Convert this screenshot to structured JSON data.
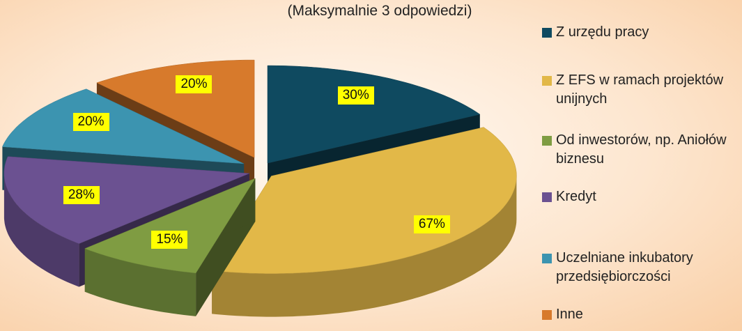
{
  "chart_data": {
    "type": "pie",
    "subtitle": "(Maksymalnie 3 odpowiedzi)",
    "categories": [
      "Z urzędu pracy",
      "Z EFS w ramach projektów unijnych",
      "Od inwestorów, np. Aniołów biznesu",
      "Kredyt",
      "Uczelniane inkubatory przedsiębiorczości",
      "Inne"
    ],
    "values": [
      30,
      67,
      15,
      28,
      20,
      20
    ],
    "value_labels": [
      "30%",
      "67%",
      "15%",
      "28%",
      "20%",
      "20%"
    ],
    "colors": [
      "#0f4a60",
      "#e2b848",
      "#7f9c42",
      "#6b5191",
      "#3c94b0",
      "#d77a2c"
    ],
    "legend": "right"
  }
}
